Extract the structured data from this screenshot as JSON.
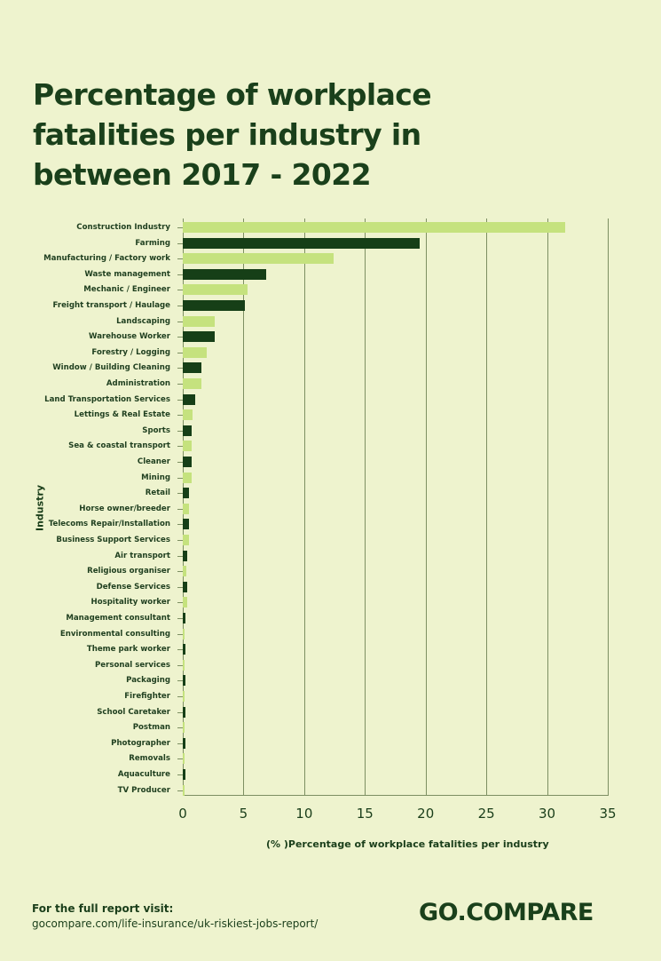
{
  "title": "Percentage of workplace fatalities per industry in between 2017 - 2022",
  "colors": {
    "background": "#eef3ce",
    "dark_bar": "#163f17",
    "light_bar": "#c5e27e",
    "text": "#1a401b",
    "grid": "#7d8f62"
  },
  "chart_data": {
    "type": "bar",
    "orientation": "horizontal",
    "title": "Percentage of workplace fatalities per industry in between 2017 - 2022",
    "xlabel": "(% )Percentage of workplace fatalities per industry",
    "ylabel": "Industry",
    "xlim": [
      0,
      35
    ],
    "xticks": [
      0,
      5,
      10,
      15,
      20,
      25,
      30,
      35
    ],
    "grid": "vertical",
    "legend": null,
    "categories": [
      "Construction Industry",
      "Farming",
      "Manufacturing / Factory work",
      "Waste management",
      "Mechanic / Engineer",
      "Freight transport / Haulage",
      "Landscaping",
      "Warehouse Worker",
      "Forestry / Logging",
      "Window / Building Cleaning",
      "Administration",
      "Land Transportation Services",
      "Lettings & Real Estate",
      "Sports",
      "Sea & coastal transport",
      "Cleaner",
      "Mining",
      "Retail",
      "Horse owner/breeder",
      "Telecoms Repair/Installation",
      "Business Support Services",
      "Air transport",
      "Religious organiser",
      "Defense Services",
      "Hospitality worker",
      "Management consultant",
      "Environmental consulting",
      "Theme park worker",
      "Personal services",
      "Packaging",
      "Firefighter",
      "School Caretaker",
      "Postman",
      "Photographer",
      "Removals",
      "Aquaculture",
      "TV Producer"
    ],
    "values": [
      31.5,
      19.5,
      12.4,
      6.9,
      5.3,
      5.1,
      2.6,
      2.6,
      2.0,
      1.5,
      1.5,
      1.0,
      0.8,
      0.7,
      0.7,
      0.7,
      0.7,
      0.5,
      0.5,
      0.5,
      0.5,
      0.4,
      0.3,
      0.4,
      0.4,
      0.2,
      0.1,
      0.2,
      0.1,
      0.2,
      0.1,
      0.2,
      0.1,
      0.2,
      0.1,
      0.2,
      0.1
    ],
    "bar_colors": "alternating light (#c5e27e) / dark (#163f17), starting light"
  },
  "footer": {
    "intro": "For  the full report visit:",
    "url": "gocompare.com/life-insurance/uk-riskiest-jobs-report/",
    "logo": "GO.COMPARE"
  }
}
